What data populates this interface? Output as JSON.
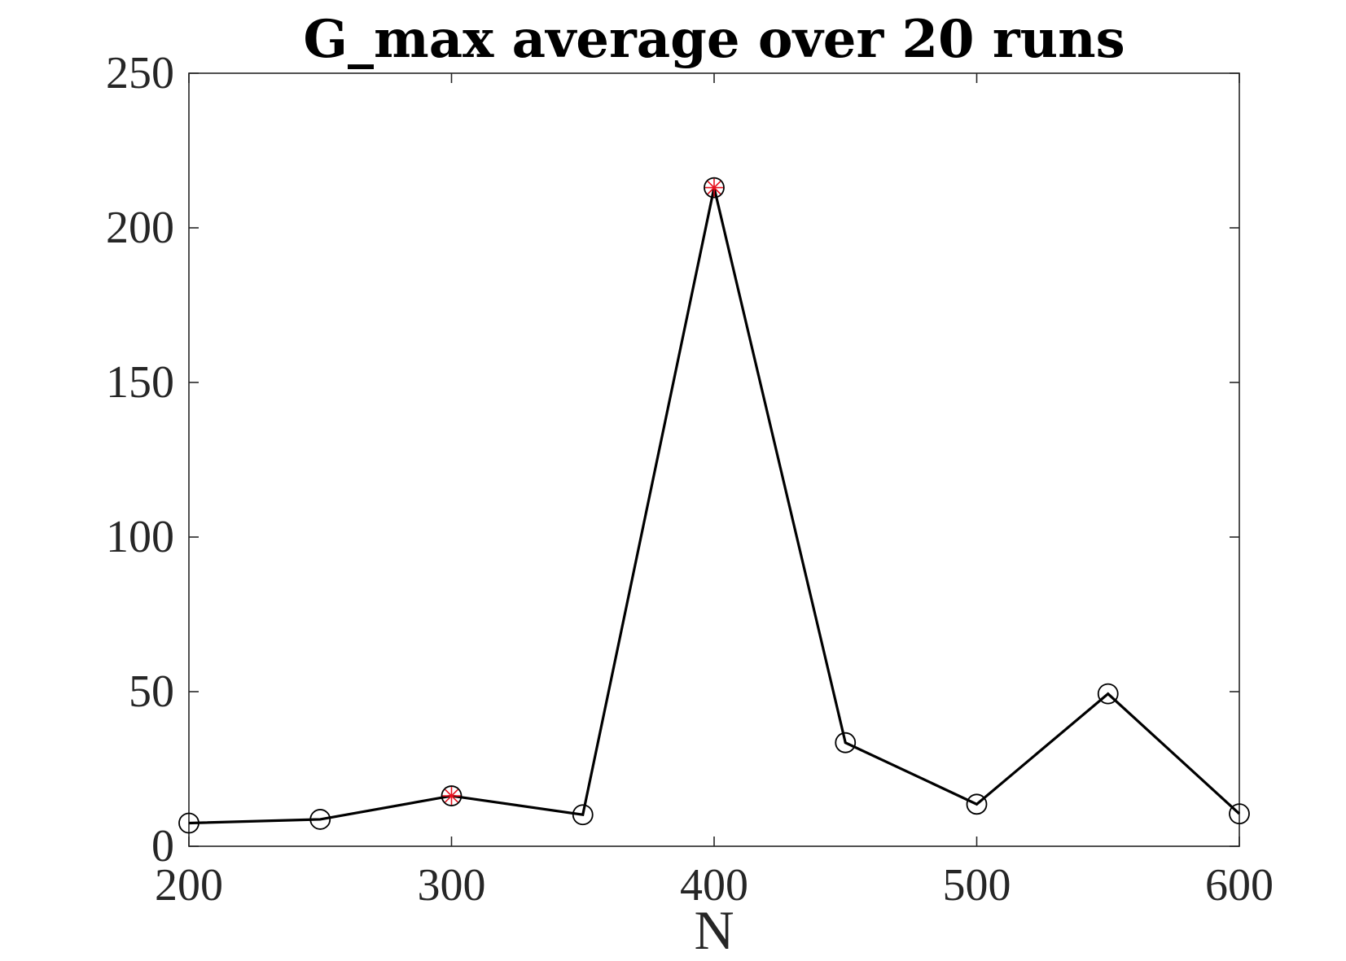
{
  "chart_data": {
    "type": "line",
    "title": "G_max average over 20 runs",
    "xlabel": "N",
    "ylabel": "",
    "xlim": [
      200,
      600
    ],
    "ylim": [
      0,
      250
    ],
    "xticks": [
      200,
      300,
      400,
      500,
      600
    ],
    "yticks": [
      0,
      50,
      100,
      150,
      200,
      250
    ],
    "grid": false,
    "series": [
      {
        "x": [
          200,
          250,
          300,
          350,
          400,
          450,
          500,
          550,
          600
        ],
        "values": [
          7.5,
          8.7,
          16.3,
          10.2,
          213.0,
          33.5,
          13.6,
          49.3,
          10.5
        ],
        "line_color": "#000000",
        "marker": "circle"
      }
    ],
    "highlighted_points": {
      "x": [
        300,
        400
      ],
      "values": [
        16.3,
        213.0
      ],
      "marker": "asterisk",
      "color": "#e8101e"
    }
  }
}
